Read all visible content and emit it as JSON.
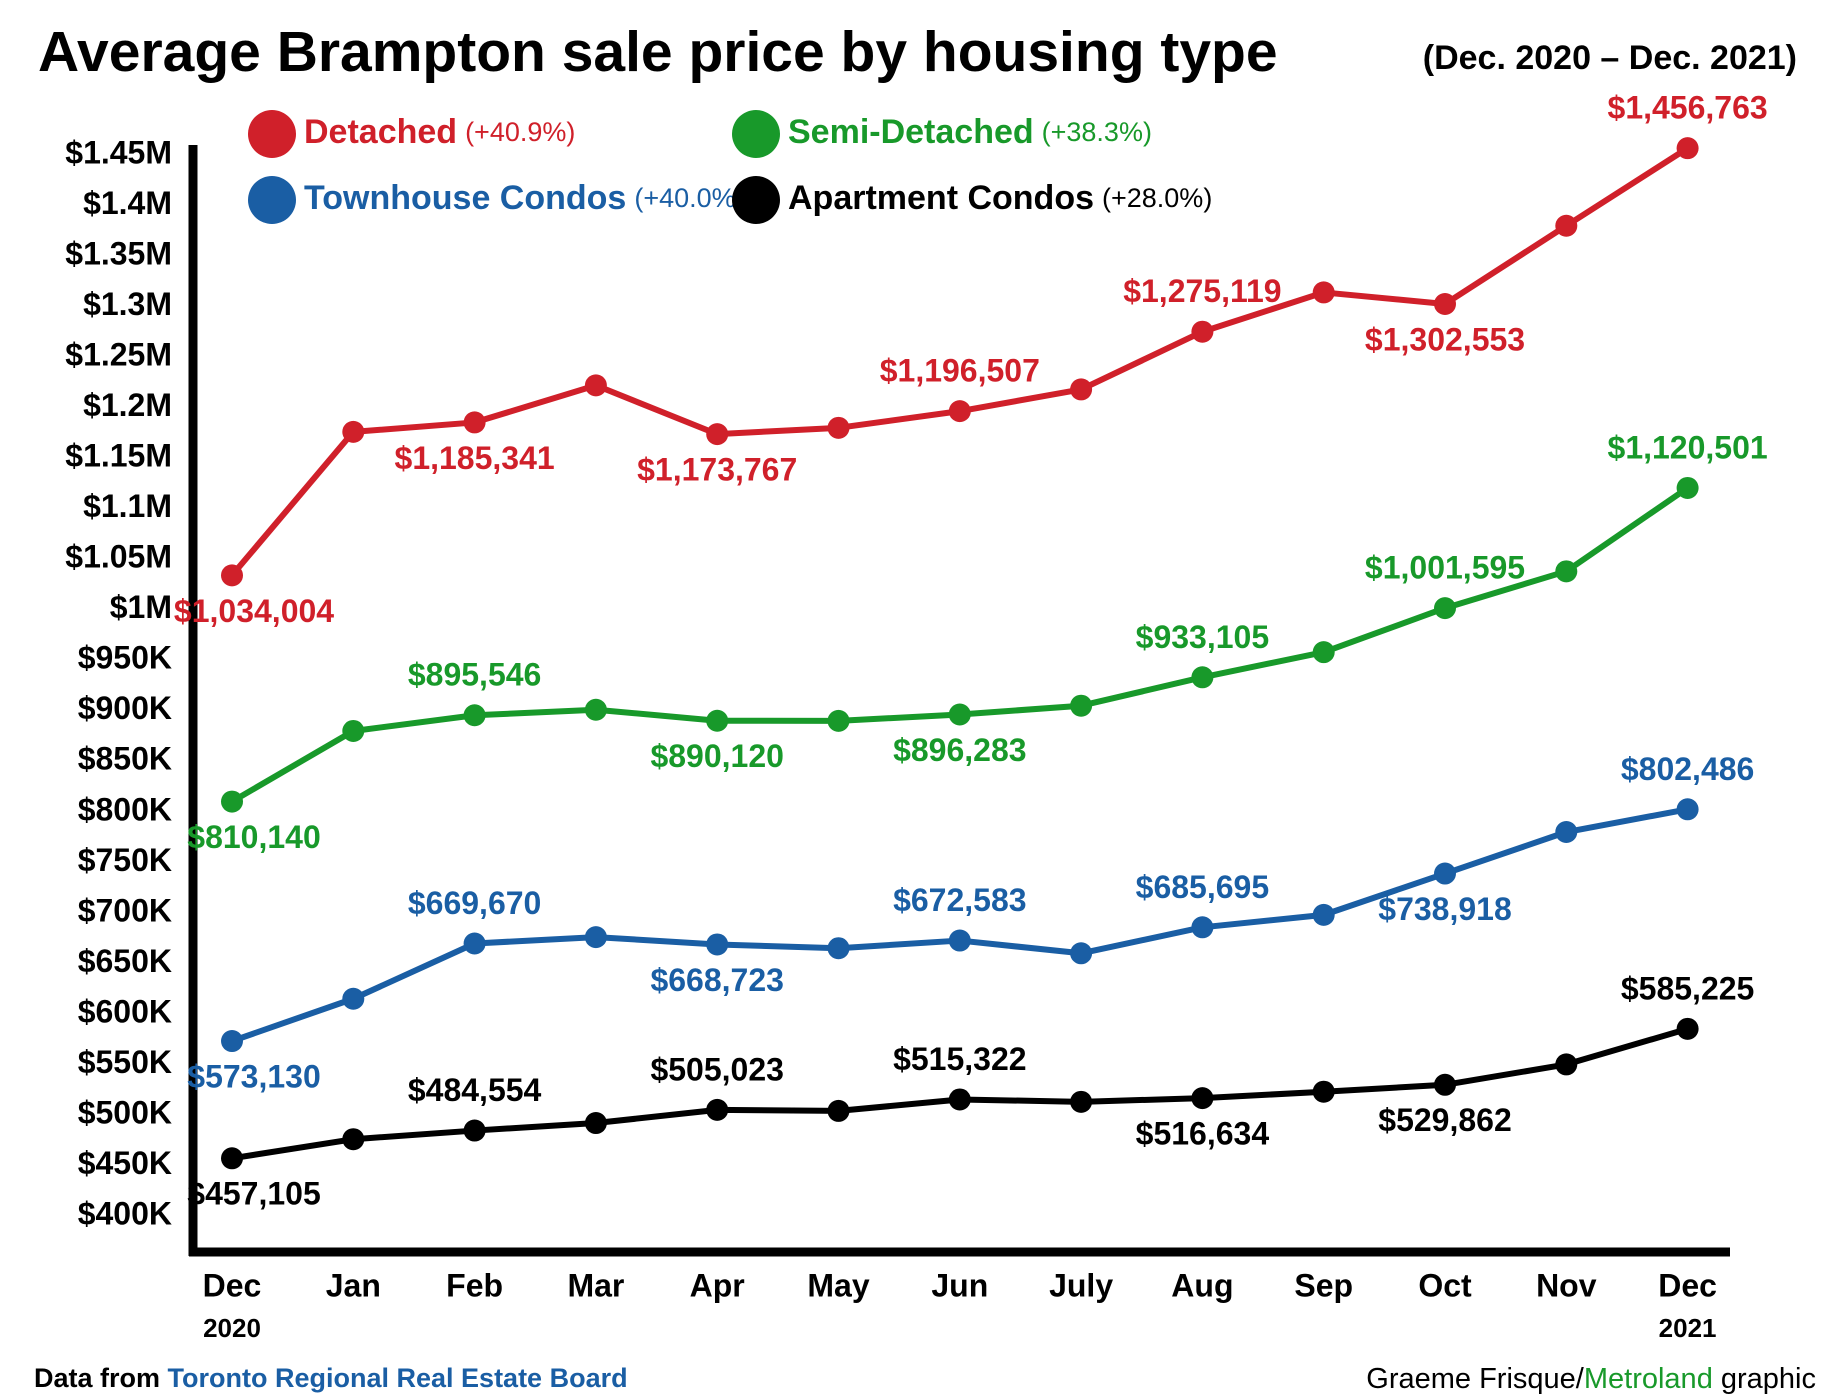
{
  "chart_data": {
    "type": "line",
    "title": "Average Brampton sale price by housing type",
    "subtitle": "(Dec. 2020 – Dec. 2021)",
    "categories": [
      "Dec",
      "Jan",
      "Feb",
      "Mar",
      "Apr",
      "May",
      "Jun",
      "July",
      "Aug",
      "Sep",
      "Oct",
      "Nov",
      "Dec"
    ],
    "category_sublabels": [
      "2020",
      null,
      null,
      null,
      null,
      null,
      null,
      null,
      null,
      null,
      null,
      null,
      "2021"
    ],
    "ylim": [
      400000,
      1450000
    ],
    "yticks": [
      {
        "value": 400000,
        "label": "$400K"
      },
      {
        "value": 450000,
        "label": "$450K"
      },
      {
        "value": 500000,
        "label": "$500K"
      },
      {
        "value": 550000,
        "label": "$550K"
      },
      {
        "value": 600000,
        "label": "$600K"
      },
      {
        "value": 650000,
        "label": "$650K"
      },
      {
        "value": 700000,
        "label": "$700K"
      },
      {
        "value": 750000,
        "label": "$750K"
      },
      {
        "value": 800000,
        "label": "$800K"
      },
      {
        "value": 850000,
        "label": "$850K"
      },
      {
        "value": 900000,
        "label": "$900K"
      },
      {
        "value": 950000,
        "label": "$950K"
      },
      {
        "value": 1000000,
        "label": "$1M"
      },
      {
        "value": 1050000,
        "label": "$1.05M"
      },
      {
        "value": 1100000,
        "label": "$1.1M"
      },
      {
        "value": 1150000,
        "label": "$1.15M"
      },
      {
        "value": 1200000,
        "label": "$1.2M"
      },
      {
        "value": 1250000,
        "label": "$1.25M"
      },
      {
        "value": 1300000,
        "label": "$1.3M"
      },
      {
        "value": 1350000,
        "label": "$1.35M"
      },
      {
        "value": 1400000,
        "label": "$1.4M"
      },
      {
        "value": 1450000,
        "label": "$1.45M"
      }
    ],
    "grid": false,
    "series": [
      {
        "name": "Detached",
        "change": "(+40.9%)",
        "color": "#d0202a",
        "values": [
          1034004,
          1176000,
          1185341,
          1222000,
          1173767,
          1180000,
          1196507,
          1218000,
          1275119,
          1314000,
          1302553,
          1380000,
          1456763
        ],
        "value_labels": [
          "$1,034,004",
          null,
          "$1,185,341",
          null,
          "$1,173,767",
          null,
          "$1,196,507",
          null,
          "$1,275,119",
          null,
          "$1,302,553",
          null,
          "$1,456,763"
        ]
      },
      {
        "name": "Semi-Detached",
        "change": "(+38.3%)",
        "color": "#18992a",
        "values": [
          810140,
          880000,
          895546,
          901000,
          890120,
          890000,
          896283,
          905000,
          933105,
          958000,
          1001595,
          1038000,
          1120501
        ],
        "value_labels": [
          "$810,140",
          null,
          "$895,546",
          null,
          "$890,120",
          null,
          "$896,283",
          null,
          "$933,105",
          null,
          "$1,001,595",
          null,
          "$1,120,501"
        ]
      },
      {
        "name": "Townhouse Condos",
        "change": "(+40.0%)",
        "color": "#1a5ea4",
        "values": [
          573130,
          615000,
          669670,
          676000,
          668723,
          665000,
          672583,
          660000,
          685695,
          698000,
          738918,
          780000,
          802486
        ],
        "value_labels": [
          "$573,130",
          null,
          "$669,670",
          null,
          "$668,723",
          null,
          "$672,583",
          null,
          "$685,695",
          null,
          "$738,918",
          null,
          "$802,486"
        ]
      },
      {
        "name": "Apartment Condos",
        "change": "(+28.0%)",
        "color": "#000000",
        "values": [
          457105,
          476000,
          484554,
          492000,
          505023,
          504000,
          515322,
          513000,
          516634,
          523000,
          529862,
          550000,
          585225
        ],
        "value_labels": [
          "$457,105",
          null,
          "$484,554",
          null,
          "$505,023",
          null,
          "$515,322",
          null,
          "$516,634",
          null,
          "$529,862",
          null,
          "$585,225"
        ]
      }
    ],
    "source_prefix": "Data from ",
    "source_name": "Toronto Regional Real Estate Board",
    "credit_name": "Graeme Frisque/",
    "credit_org": "Metroland",
    "credit_suffix": " graphic"
  }
}
